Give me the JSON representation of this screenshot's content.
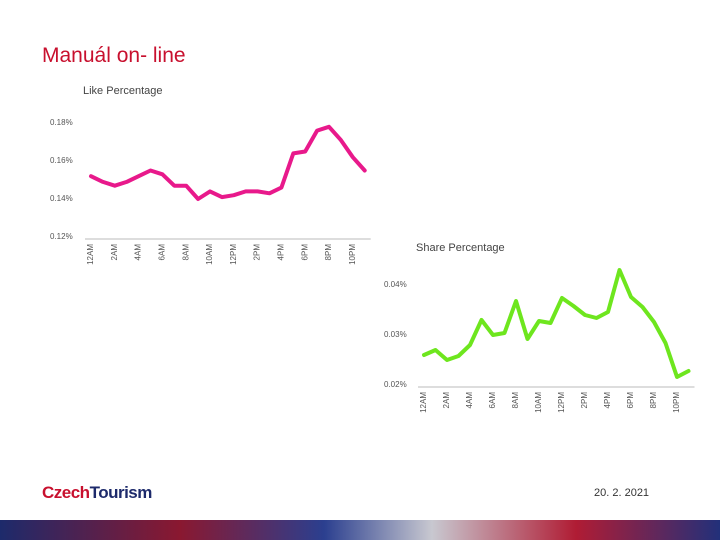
{
  "slide": {
    "title": "Manuál on- line",
    "logo": [
      "Czech",
      "Tourism"
    ],
    "date": "20. 2. 2021"
  },
  "chart_data": [
    {
      "type": "line",
      "title": "Like Percentage",
      "color": "#e8198b",
      "categories": [
        "12AM",
        null,
        "2AM",
        null,
        "4AM",
        null,
        "6AM",
        null,
        "8AM",
        null,
        "10AM",
        null,
        "12PM",
        null,
        "2PM",
        null,
        "4PM",
        null,
        "6PM",
        null,
        "8PM",
        null,
        "10PM",
        null
      ],
      "values": [
        0.152,
        0.149,
        0.147,
        0.149,
        0.152,
        0.155,
        0.153,
        0.147,
        0.147,
        0.14,
        0.144,
        0.141,
        0.142,
        0.144,
        0.144,
        0.143,
        0.146,
        0.164,
        0.165,
        0.176,
        0.178,
        0.171,
        0.162,
        0.155
      ],
      "ylim": [
        0.12,
        0.185
      ],
      "yticks": [
        {
          "value": 0.12,
          "label": "0.12%"
        },
        {
          "value": 0.14,
          "label": "0.14%"
        },
        {
          "value": 0.16,
          "label": "0.16%"
        },
        {
          "value": 0.18,
          "label": "0.18%"
        }
      ]
    },
    {
      "type": "line",
      "title": "Share Percentage",
      "color": "#6ee61e",
      "categories": [
        "12AM",
        null,
        "2AM",
        null,
        "4AM",
        null,
        "6AM",
        null,
        "8AM",
        null,
        "10AM",
        null,
        "12PM",
        null,
        "2PM",
        null,
        "4PM",
        null,
        "6PM",
        null,
        "8PM",
        null,
        "10PM",
        null
      ],
      "values": [
        0.026,
        0.027,
        0.025,
        0.0258,
        0.028,
        0.033,
        0.03,
        0.0304,
        0.0368,
        0.0292,
        0.0328,
        0.0324,
        0.0374,
        0.0358,
        0.034,
        0.0334,
        0.0346,
        0.043,
        0.0376,
        0.0356,
        0.0326,
        0.0284,
        0.0216,
        0.0228
      ],
      "ylim": [
        0.02,
        0.045
      ],
      "yticks": [
        {
          "value": 0.02,
          "label": "0.02%"
        },
        {
          "value": 0.03,
          "label": "0.03%"
        },
        {
          "value": 0.04,
          "label": "0.04%"
        }
      ]
    }
  ]
}
